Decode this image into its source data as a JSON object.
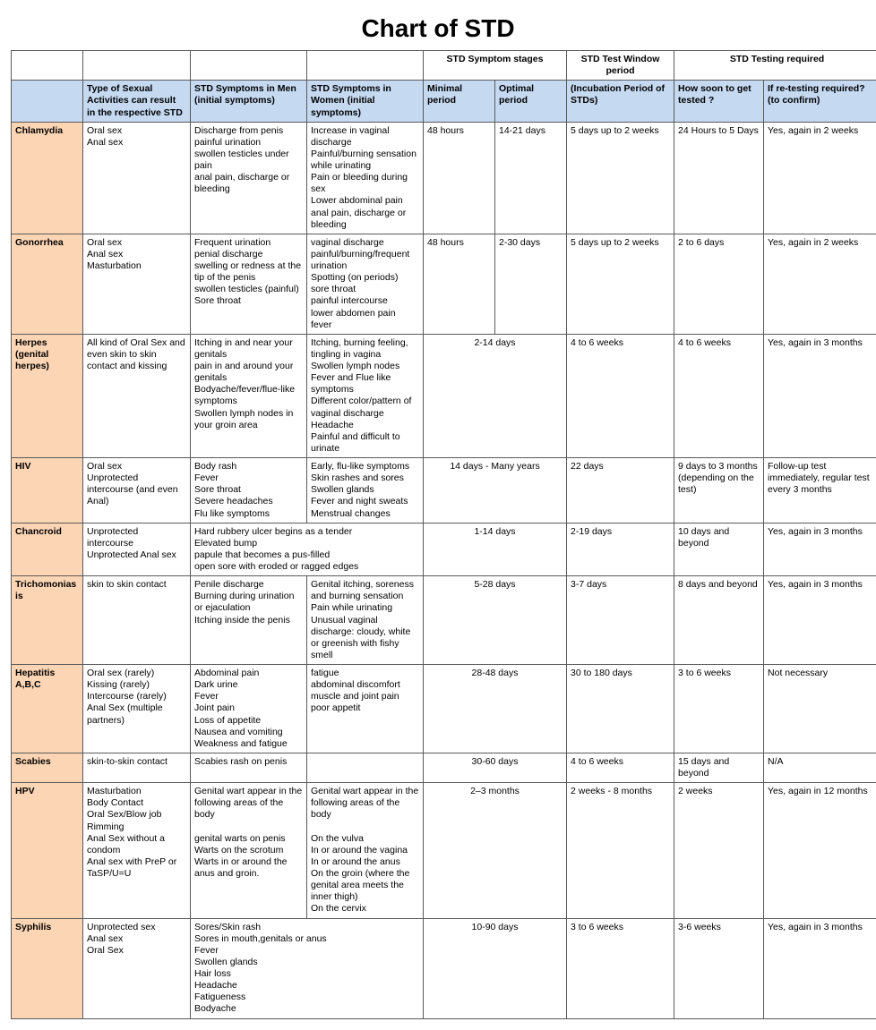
{
  "title": "Chart of STD",
  "group_headers": {
    "symptom_stages": "STD Symptom stages",
    "window_period": "STD Test Window period",
    "testing_required": "STD Testing required"
  },
  "columns": {
    "activities": "Type of Sexual Activities can result in the respective STD",
    "men": "STD Symptoms in Men (initial symptoms)",
    "women": "STD Symptoms in Women (initial symptoms)",
    "minimal": "Minimal period",
    "optimal": "Optimal period",
    "incubation": "(Incubation Period of STDs)",
    "how_soon": "How soon to get tested ?",
    "retest": "If re-testing required? (to confirm)"
  },
  "rows": {
    "chlamydia": {
      "name": "Chlamydia",
      "activities": "Oral sex\nAnal sex",
      "men": "Discharge from penis\npainful urination\nswollen testicles under pain\nanal pain, discharge or bleeding",
      "women": "Increase in vaginal discharge\nPainful/burning sensation while urinating\nPain or bleeding during sex\nLower abdominal pain\nanal pain, discharge or bleeding",
      "minimal": "48 hours",
      "optimal": "14-21 days",
      "incubation": "5 days up to 2 weeks",
      "how_soon": "24 Hours to 5 Days",
      "retest": "Yes, again in 2 weeks"
    },
    "gonorrhea": {
      "name": "Gonorrhea",
      "activities": "Oral sex\nAnal sex\nMasturbation",
      "men": "Frequent urination\npenial discharge\nswelling or redness at the tip of the penis\nswollen testicles (painful)\nSore throat",
      "women": "vaginal discharge\npainful/burning/frequent urination\nSpotting (on periods)\nsore throat\npainful intercourse\nlower abdomen pain\nfever",
      "minimal": "48 hours",
      "optimal": "2-30 days",
      "incubation": "5 days up to 2 weeks",
      "how_soon": "2  to 6 days",
      "retest": "Yes, again in 2 weeks"
    },
    "herpes": {
      "name": "Herpes (genital herpes)",
      "activities": "All kind of Oral Sex and even skin to skin contact and kissing",
      "men": "Itching in and near your genitals\npain in and around your genitals\nBodyache/fever/flue-like symptoms\nSwollen lymph nodes in your groin area",
      "women": "Itching, burning feeling, tingling in vagina\nSwollen lymph nodes\nFever and Flue like symptoms\nDifferent color/pattern of vaginal discharge\nHeadache\nPainful and difficult to urinate",
      "merged_period": "2-14 days",
      "incubation": "4 to 6 weeks",
      "how_soon": "4 to 6 weeks",
      "retest": "Yes, again in 3 months"
    },
    "hiv": {
      "name": "HIV",
      "activities": "Oral sex\nUnprotected intercourse (and even Anal)",
      "men": "Body rash\nFever\nSore throat\nSevere headaches\nFlu like symptoms",
      "women": "Early, flu-like symptoms\nSkin rashes and sores\nSwollen glands\nFever and night sweats\nMenstrual changes",
      "merged_period": "14 days - Many years",
      "incubation": "22 days",
      "how_soon": "9 days to 3 months (depending on the test)",
      "retest": "Follow-up test immediately, regular test every 3 months"
    },
    "chancroid": {
      "name": "Chancroid",
      "activities": "Unprotected intercourse\nUnprotected Anal sex",
      "merged_symptoms": "Hard rubbery ulcer begins as a tender\nElevated bump\npapule that becomes a pus-filled\nopen sore with eroded or ragged edges",
      "merged_period": "1-14 days",
      "incubation": "2-19 days",
      "how_soon": "10 days and beyond",
      "retest": "Yes, again in 3 months"
    },
    "trichomoniasis": {
      "name": "Trichomoniasis",
      "activities": "skin to skin contact",
      "men": "Penile discharge\nBurning during urination or ejaculation\nItching inside the penis",
      "women": "Genital itching, soreness and burning sensation\nPain while urinating\nUnusual vaginal discharge: cloudy, white or greenish with fishy smell",
      "merged_period": "5-28 days",
      "incubation": "3-7 days",
      "how_soon": "8 days and beyond",
      "retest": "Yes, again in 3 months"
    },
    "hepatitis": {
      "name": "Hepatitis A,B,C",
      "activities": "Oral sex (rarely)\nKissing (rarely)\nIntercourse (rarely)\nAnal Sex (multiple partners)",
      "men": "Abdominal pain\nDark urine\nFever\nJoint pain\nLoss of appetite\nNausea and vomiting\nWeakness and fatigue",
      "women": "fatigue\nabdominal discomfort\nmuscle and joint pain\npoor appetit",
      "merged_period": "28-48 days",
      "incubation": "30 to 180 days",
      "how_soon": "3 to 6 weeks",
      "retest": "Not necessary"
    },
    "scabies": {
      "name": "Scabies",
      "activities": "skin-to-skin contact",
      "men": "Scabies rash on penis",
      "women": "",
      "merged_period": "30-60 days",
      "incubation": "4 to 6 weeks",
      "how_soon": "15 days and beyond",
      "retest": "N/A"
    },
    "hpv": {
      "name": "HPV",
      "activities": "Masturbation\nBody Contact\nOral Sex/Blow job\nRimming\nAnal Sex without a condom\nAnal sex with PreP or TaSP/U=U",
      "men": "Genital wart appear in the following areas of the body\n\ngenital warts on penis\nWarts on the scrotum\nWarts in or around the anus and groin.",
      "women": "Genital wart appear in the following areas of the body\n\nOn the vulva\nIn or around the vagina\nIn or around the anus\nOn the groin (where the genital area meets the inner thigh)\nOn the cervix",
      "merged_period": "2–3 months",
      "incubation": "2 weeks - 8 months",
      "how_soon": "2 weeks",
      "retest": "Yes, again in 12 months"
    },
    "syphilis": {
      "name": "Syphilis",
      "activities": "Unprotected sex\nAnal sex\nOral Sex",
      "merged_symptoms": "Sores/Skin rash\nSores in mouth,genitals or anus\nFever\nSwollen glands\nHair loss\nHeadache\nFatigueness\nBodyache",
      "merged_period": "10-90 days",
      "incubation": "3 to 6 weeks",
      "how_soon": "3-6 weeks",
      "retest": "Yes, again in 3 months"
    }
  }
}
